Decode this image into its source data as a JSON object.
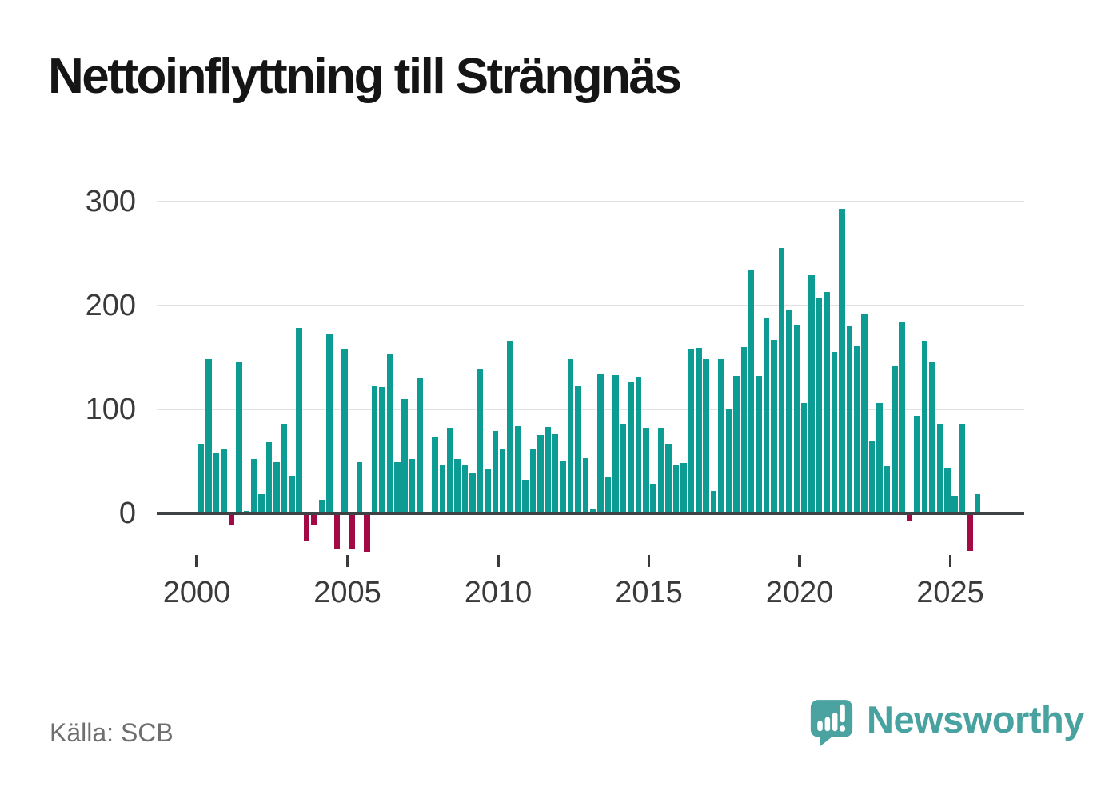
{
  "title": "Nettoinflyttning till Strängnäs",
  "source": "Källa: SCB",
  "branding": {
    "logo_icon": "speech-bubble-with-chart-bars-and-exclamation",
    "logo_text": "Newsworthy",
    "logo_color": "#48a2a0"
  },
  "chart_data": {
    "type": "bar",
    "title": "Nettoinflyttning till Strängnäs",
    "frequency": "quarterly",
    "start_period": "2000Q1",
    "end_period": "2025Q4",
    "values": [
      67,
      148,
      58,
      62,
      -10,
      145,
      2,
      52,
      18,
      68,
      49,
      86,
      36,
      178,
      -26,
      -10,
      13,
      173,
      -33,
      158,
      -33,
      49,
      -36,
      122,
      121,
      154,
      49,
      110,
      52,
      130,
      0,
      74,
      47,
      82,
      52,
      47,
      38,
      139,
      42,
      79,
      61,
      166,
      84,
      32,
      61,
      75,
      83,
      76,
      50,
      148,
      123,
      53,
      4,
      134,
      35,
      133,
      86,
      126,
      131,
      82,
      28,
      82,
      67,
      46,
      48,
      158,
      159,
      148,
      21,
      148,
      100,
      132,
      160,
      234,
      132,
      188,
      167,
      255,
      195,
      181,
      106,
      229,
      207,
      213,
      155,
      293,
      180,
      161,
      192,
      69,
      106,
      45,
      141,
      184,
      -6,
      94,
      166,
      145,
      86,
      44,
      17,
      86,
      -35,
      18
    ],
    "x_tick_labels": [
      "2000",
      "2005",
      "2010",
      "2015",
      "2020",
      "2025"
    ],
    "y_tick_labels": [
      "0",
      "100",
      "200",
      "300"
    ],
    "y_gridlines": [
      100,
      200,
      300
    ],
    "ylim": [
      -55,
      320
    ],
    "grid": true,
    "legend": false,
    "positive_color": "#0d9c94",
    "negative_color": "#a30a45",
    "axis_color": "#3f4245",
    "gridline_color": "#e2e2e2",
    "label_color": "#3a3a3a"
  }
}
